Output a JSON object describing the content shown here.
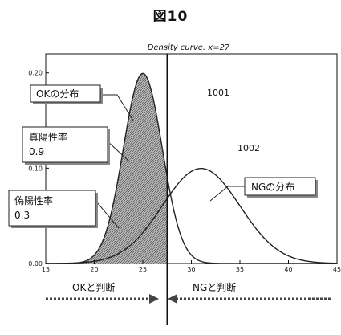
{
  "figure_title": "図10",
  "chart_data": {
    "type": "line",
    "title": "Density curve. x=27",
    "xlim": [
      15,
      45
    ],
    "ylim": [
      0,
      0.22
    ],
    "x_ticks": [
      "15",
      "20",
      "25",
      "30",
      "35",
      "40",
      "45"
    ],
    "y_ticks": [
      "0.00",
      "0.10",
      "0.20"
    ],
    "threshold_x": 27.5,
    "series": [
      {
        "name": "OKの分布",
        "mean": 25,
        "sd": 2.0,
        "color": "#222222",
        "x": [
          19,
          20,
          21,
          22,
          23,
          24,
          25,
          26,
          27,
          28,
          29,
          30,
          31
        ],
        "values": [
          0.002,
          0.009,
          0.027,
          0.065,
          0.121,
          0.176,
          0.199,
          0.176,
          0.121,
          0.065,
          0.027,
          0.009,
          0.002
        ]
      },
      {
        "name": "NGの分布",
        "mean": 31,
        "sd": 4.0,
        "color": "#222222",
        "x": [
          20,
          22,
          24,
          26,
          28,
          30,
          31,
          32,
          34,
          36,
          38,
          40,
          42
        ],
        "values": [
          0.002,
          0.008,
          0.022,
          0.046,
          0.075,
          0.097,
          0.1,
          0.097,
          0.075,
          0.046,
          0.022,
          0.008,
          0.002
        ]
      }
    ]
  },
  "annotations": {
    "region_1001": "1001",
    "region_1002": "1002",
    "ok_label": "OKの分布",
    "ng_label": "NGの分布",
    "tpr_label": "真陽性率",
    "tpr_value": "0.9",
    "fpr_label": "偽陽性率",
    "fpr_value": "0.3",
    "judge_ok": "OKと判断",
    "judge_ng": "NGと判断"
  }
}
